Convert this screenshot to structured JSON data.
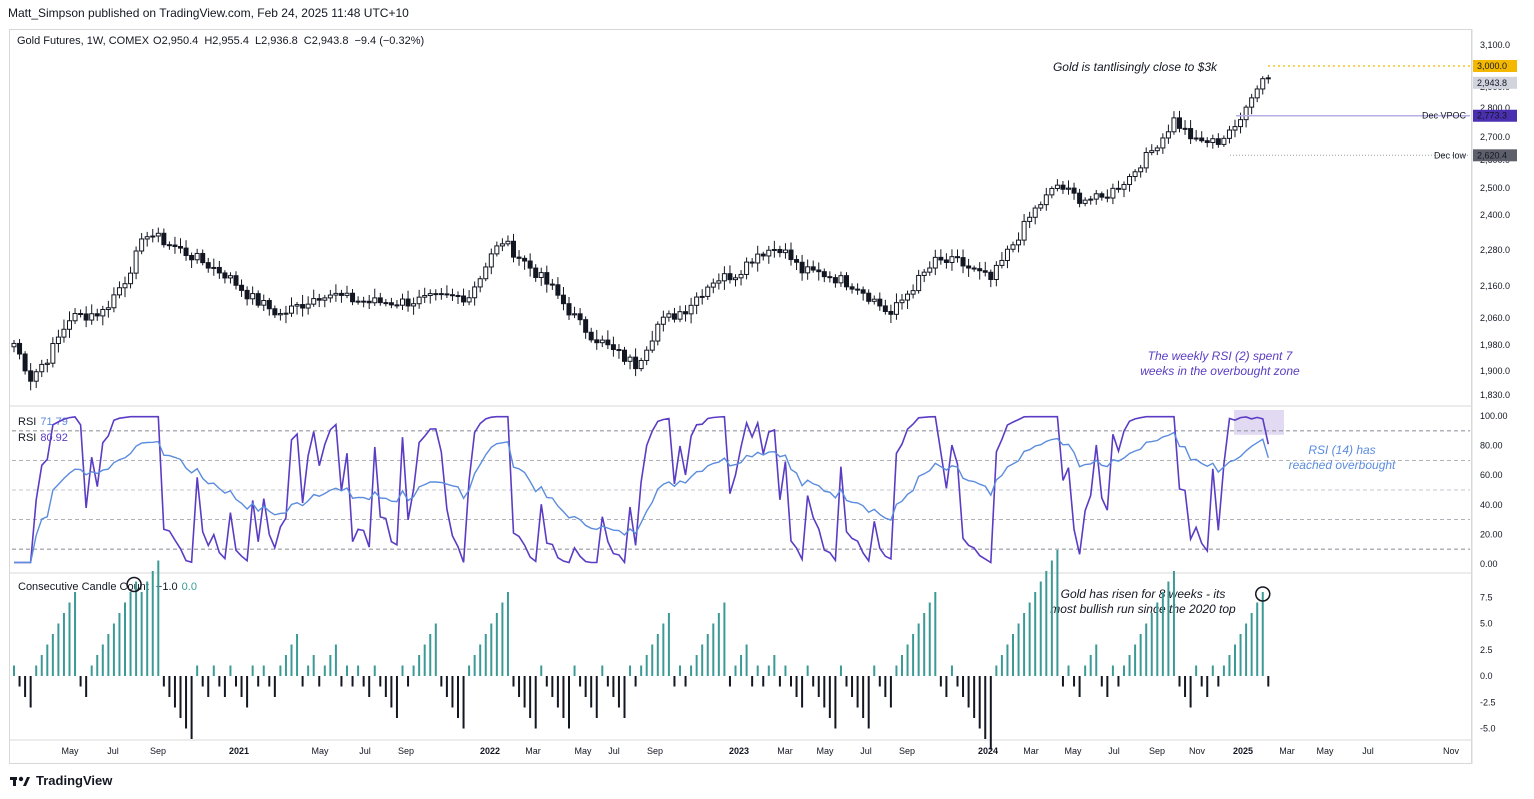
{
  "header": {
    "publisher": "Matt_Simpson published on TradingView.com, Feb 24, 2025 11:48 UTC+10"
  },
  "price_legend": {
    "symbol": "Gold Futures, 1W, COMEX",
    "open": "O2,950.4",
    "high": "H2,955.4",
    "low": "L2,936.8",
    "close": "C2,943.8",
    "change": "−9.4 (−0.32%)"
  },
  "rsi_legend": {
    "label1": "RSI",
    "value1": "71.79",
    "label2": "RSI",
    "value2": "80.92"
  },
  "ccc_legend": {
    "label": "Consecutive Candle Count",
    "value1": "−1.0",
    "value2": "0.0"
  },
  "annotations": {
    "gold_3k": "Gold is tantlisingly close to $3k",
    "rsi2_line1": "The weekly RSI (2) spent 7",
    "rsi2_line2": "weeks in the overbought zone",
    "rsi14_line1": "RSI (14) has",
    "rsi14_line2": "reached overbought",
    "ccc_line1": "Gold has risen for 8 weeks - its",
    "ccc_line2": "most bullish run since the 2020 top"
  },
  "price_labels": {
    "level_3000": "3,000.0",
    "last_price": "2,943.8",
    "dec_vpoc_name": "Dec VPOC",
    "dec_vpoc_value": "2,773.3",
    "dec_low_name": "Dec low",
    "dec_low_value": "2,620.4"
  },
  "footer": {
    "brand": "TradingView"
  },
  "colors": {
    "up": "#131722",
    "down": "#131722",
    "rsi2": "#5b3cc4",
    "rsi14": "#5b8cde",
    "ccc_up": "#3c9a96",
    "ccc_down": "#131722",
    "yellow": "#f5b800",
    "vpoc": "#5b3cc4"
  },
  "chart_data": [
    {
      "type": "candlestick",
      "title": "Gold Futures, 1W, COMEX",
      "y_ticks": [
        "3,100.0",
        "3,000.0",
        "2,900.0",
        "2,800.0",
        "2,700.0",
        "2,600.0",
        "2,500.0",
        "2,400.0",
        "2,280.0",
        "2,160.0",
        "2,060.0",
        "1,980.0",
        "1,900.0",
        "1,830.0"
      ],
      "x_ticks": [
        "May",
        "Jul",
        "Sep",
        "2021",
        "May",
        "Jul",
        "Sep",
        "2022",
        "Mar",
        "May",
        "Jul",
        "Sep",
        "2023",
        "Mar",
        "May",
        "Jul",
        "Sep",
        "2024",
        "Mar",
        "May",
        "Jul",
        "Sep",
        "Nov",
        "2025",
        "Mar",
        "May",
        "Jul",
        "Nov"
      ],
      "ylim": [
        1800,
        3130
      ],
      "levels": [
        {
          "name": "3,000",
          "value": 3000
        },
        {
          "name": "Dec VPOC",
          "value": 2773.3
        },
        {
          "name": "Dec low",
          "value": 2620.4
        }
      ],
      "anchors": [
        {
          "week": 0,
          "price": 1985
        },
        {
          "week": 3,
          "price": 1880
        },
        {
          "week": 6,
          "price": 1940
        },
        {
          "week": 10,
          "price": 2060
        },
        {
          "week": 16,
          "price": 2080
        },
        {
          "week": 20,
          "price": 2180
        },
        {
          "week": 24,
          "price": 2340
        },
        {
          "week": 28,
          "price": 2300
        },
        {
          "week": 34,
          "price": 2240
        },
        {
          "week": 38,
          "price": 2200
        },
        {
          "week": 43,
          "price": 2120
        },
        {
          "week": 48,
          "price": 2070
        },
        {
          "week": 56,
          "price": 2140
        },
        {
          "week": 60,
          "price": 2120
        },
        {
          "week": 64,
          "price": 2110
        },
        {
          "week": 70,
          "price": 2110
        },
        {
          "week": 76,
          "price": 2120
        },
        {
          "week": 82,
          "price": 2130
        },
        {
          "week": 86,
          "price": 2260
        },
        {
          "week": 88,
          "price": 2310
        },
        {
          "week": 92,
          "price": 2240
        },
        {
          "week": 97,
          "price": 2150
        },
        {
          "week": 102,
          "price": 2040
        },
        {
          "week": 108,
          "price": 1960
        },
        {
          "week": 112,
          "price": 1920
        },
        {
          "week": 116,
          "price": 2040
        },
        {
          "week": 121,
          "price": 2090
        },
        {
          "week": 126,
          "price": 2180
        },
        {
          "week": 130,
          "price": 2200
        },
        {
          "week": 134,
          "price": 2270
        },
        {
          "week": 138,
          "price": 2290
        },
        {
          "week": 142,
          "price": 2210
        },
        {
          "week": 146,
          "price": 2200
        },
        {
          "week": 152,
          "price": 2160
        },
        {
          "week": 158,
          "price": 2070
        },
        {
          "week": 162,
          "price": 2160
        },
        {
          "week": 166,
          "price": 2240
        },
        {
          "week": 170,
          "price": 2240
        },
        {
          "week": 174,
          "price": 2200
        },
        {
          "week": 176,
          "price": 2180
        },
        {
          "week": 180,
          "price": 2300
        },
        {
          "week": 184,
          "price": 2420
        },
        {
          "week": 188,
          "price": 2510
        },
        {
          "week": 192,
          "price": 2460
        },
        {
          "week": 196,
          "price": 2460
        },
        {
          "week": 201,
          "price": 2540
        },
        {
          "week": 205,
          "price": 2640
        },
        {
          "week": 209,
          "price": 2760
        },
        {
          "week": 213,
          "price": 2680
        },
        {
          "week": 217,
          "price": 2680
        },
        {
          "week": 221,
          "price": 2760
        },
        {
          "week": 225,
          "price": 2940
        },
        {
          "week": 226,
          "price": 2943.8
        }
      ]
    },
    {
      "type": "line",
      "title": "RSI",
      "series": [
        {
          "name": "RSI",
          "last": 71.79
        },
        {
          "name": "RSI",
          "last": 80.92
        }
      ],
      "y_ticks": [
        "100.00",
        "80.00",
        "60.00",
        "40.00",
        "20.00",
        "0.00"
      ],
      "ylim": [
        0,
        100
      ],
      "bands": [
        90,
        70,
        50,
        30,
        10
      ],
      "overbought_zone": [
        90,
        100
      ]
    },
    {
      "type": "bar",
      "title": "Consecutive Candle Count",
      "y_ticks": [
        "7.5",
        "5.0",
        "2.5",
        "0.0",
        "-2.5",
        "-5.0"
      ],
      "ylim": [
        -5.5,
        8.5
      ],
      "peaks": [
        {
          "week": 22,
          "value": 9
        },
        {
          "week": 225,
          "value": 8
        }
      ]
    }
  ]
}
